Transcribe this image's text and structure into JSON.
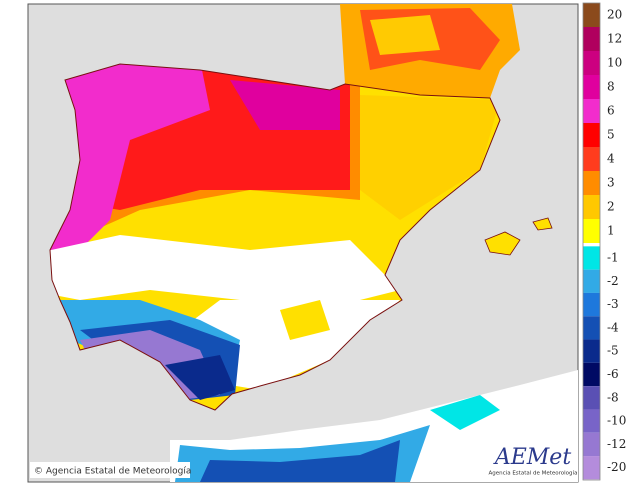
{
  "map": {
    "copyright": "© Agencia Estatal de Meteorología",
    "logo": {
      "name": "AEMet",
      "subtitle": "Agencia Estatal de Meteorología"
    }
  },
  "legend": {
    "positive": [
      {
        "value": 20,
        "color": "#8b4a1c"
      },
      {
        "value": 12,
        "color": "#b0005e"
      },
      {
        "value": 10,
        "color": "#cc0080"
      },
      {
        "value": 8,
        "color": "#e0009e"
      },
      {
        "value": 6,
        "color": "#f22ccc"
      },
      {
        "value": 5,
        "color": "#ff0000"
      },
      {
        "value": 4,
        "color": "#ff3c1e"
      },
      {
        "value": 3,
        "color": "#ff8c00"
      },
      {
        "value": 2,
        "color": "#ffc800"
      },
      {
        "value": 1,
        "color": "#ffff00"
      }
    ],
    "negative": [
      {
        "value": -1,
        "color": "#00e6e6"
      },
      {
        "value": -2,
        "color": "#32aae6"
      },
      {
        "value": -3,
        "color": "#1e78dc"
      },
      {
        "value": -4,
        "color": "#1450b4"
      },
      {
        "value": -5,
        "color": "#0a2a8c"
      },
      {
        "value": -6,
        "color": "#000a64"
      },
      {
        "value": -8,
        "color": "#5a50b4"
      },
      {
        "value": -10,
        "color": "#7864c8"
      },
      {
        "value": -12,
        "color": "#9678d2"
      },
      {
        "value": -20,
        "color": "#b48cdc"
      }
    ]
  }
}
